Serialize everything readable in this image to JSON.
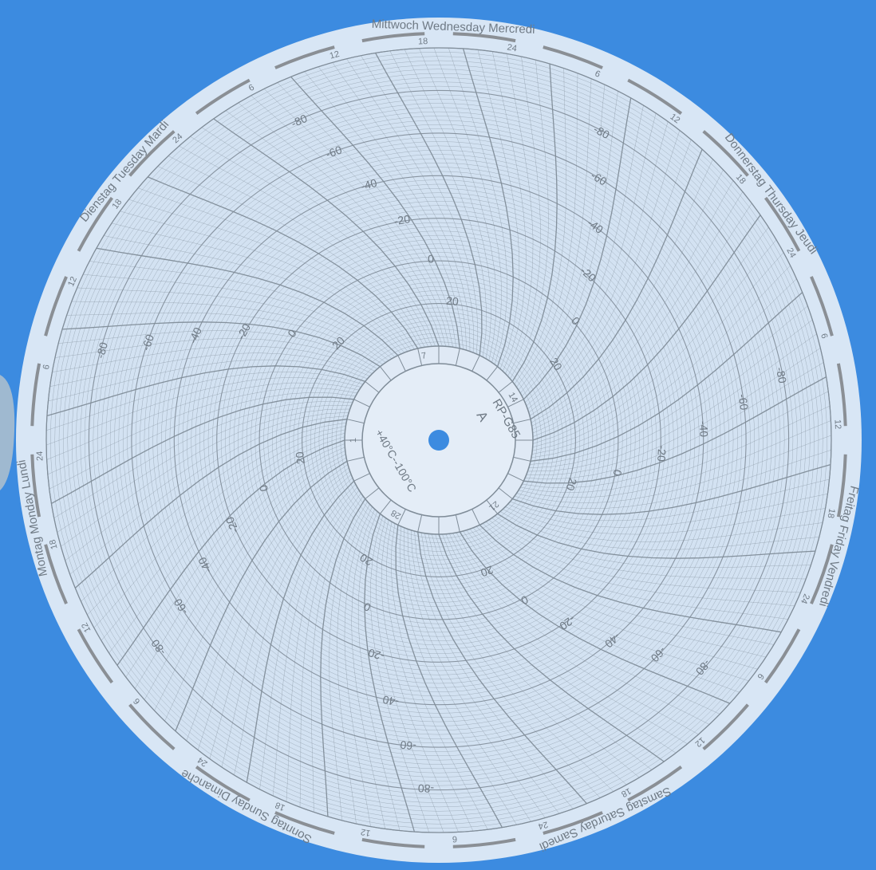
{
  "scene": {
    "subject": "circular chart recorder disc",
    "colors": {
      "background": "#3c8be0",
      "paper": "#d8e6f5",
      "grid": "#7f8c98",
      "ink": "#6f7a85",
      "band": "#8a8f95"
    }
  },
  "center": {
    "model": "RP-G85",
    "letter": "A",
    "range": "+40°C--100°C",
    "inner_marks": [
      "7",
      "14",
      "21",
      "28",
      "1"
    ]
  },
  "days": [
    "Mittwoch Wednesday Mercredi",
    "Donnerstag Thursday Jeudi",
    "Freitag Friday Vendredi",
    "Samstag Saturday Samedi",
    "Sonntag Sunday Dimanche",
    "Montag Monday Lundi",
    "Dienstag Tuesday Mardi"
  ],
  "hour_marks": [
    "6",
    "12",
    "18",
    "24"
  ],
  "temperature_labels": [
    "-80",
    "-60",
    "-40",
    "-20",
    "0",
    "20"
  ]
}
